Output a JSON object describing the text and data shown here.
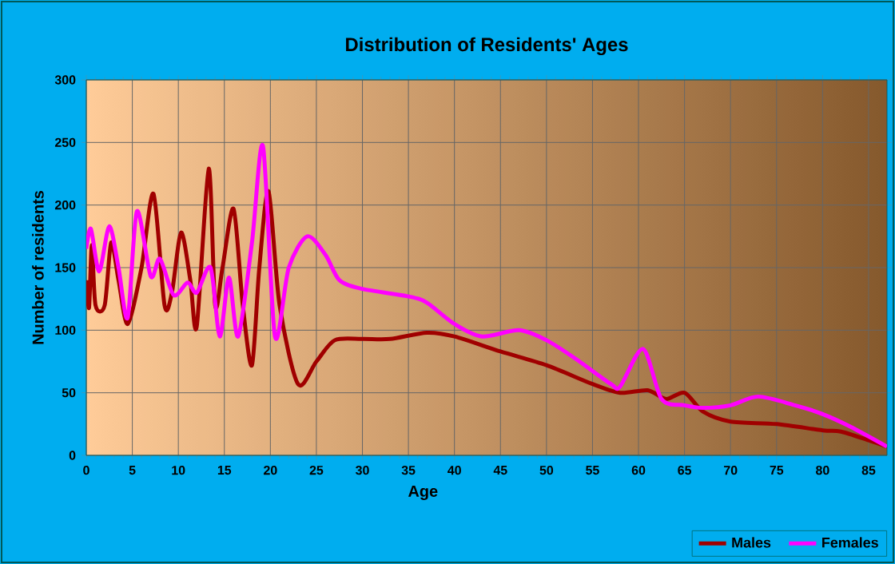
{
  "chart_data": {
    "type": "line",
    "title": "Distribution of Residents' Ages",
    "xlabel": "Age",
    "ylabel": "Number of residents",
    "xlim": [
      0,
      87
    ],
    "ylim": [
      0,
      300
    ],
    "xticks": [
      0,
      5,
      10,
      15,
      20,
      25,
      30,
      35,
      40,
      45,
      50,
      55,
      60,
      65,
      70,
      75,
      80,
      85
    ],
    "yticks": [
      0,
      50,
      100,
      150,
      200,
      250,
      300
    ],
    "grid": true,
    "legend": "bottom right",
    "series": [
      {
        "name": "Males",
        "color": "#a00000",
        "x": [
          0,
          0.3,
          0.6,
          1,
          2,
          2.7,
          3.5,
          4.5,
          6,
          7.3,
          8.5,
          9.3,
          10.3,
          11.3,
          12,
          13.3,
          14,
          14.8,
          16,
          17,
          18,
          18.8,
          19.8,
          21,
          23,
          25,
          27,
          30,
          33,
          37,
          40,
          45,
          50,
          55,
          58,
          61,
          63,
          65,
          67,
          70,
          75,
          80,
          82,
          85,
          87
        ],
        "values": [
          140,
          118,
          168,
          120,
          120,
          170,
          140,
          105,
          150,
          209,
          120,
          130,
          178,
          140,
          103,
          229,
          120,
          150,
          197,
          120,
          72,
          150,
          211,
          120,
          57,
          75,
          92,
          93,
          93,
          98,
          95,
          83,
          72,
          57,
          50,
          52,
          45,
          50,
          35,
          27,
          25,
          20,
          19,
          12,
          7
        ]
      },
      {
        "name": "Females",
        "color": "#ff00ff",
        "x": [
          0,
          0.5,
          1.4,
          2.5,
          3.5,
          4.5,
          5.5,
          7,
          8,
          9.5,
          11,
          12,
          13.5,
          14.5,
          15.5,
          16.5,
          18,
          19.2,
          20.5,
          22,
          24,
          26,
          27.5,
          30,
          35,
          37,
          40,
          43,
          47,
          50,
          53,
          57,
          58,
          60.5,
          62.5,
          65,
          67,
          70,
          73,
          77,
          80,
          83,
          87
        ],
        "values": [
          165,
          181,
          147,
          183,
          150,
          110,
          195,
          143,
          157,
          128,
          138,
          130,
          150,
          95,
          142,
          95,
          170,
          247,
          95,
          150,
          175,
          160,
          140,
          133,
          127,
          122,
          105,
          95,
          100,
          92,
          78,
          57,
          55,
          85,
          45,
          40,
          38,
          40,
          47,
          40,
          33,
          23,
          7
        ]
      }
    ]
  }
}
